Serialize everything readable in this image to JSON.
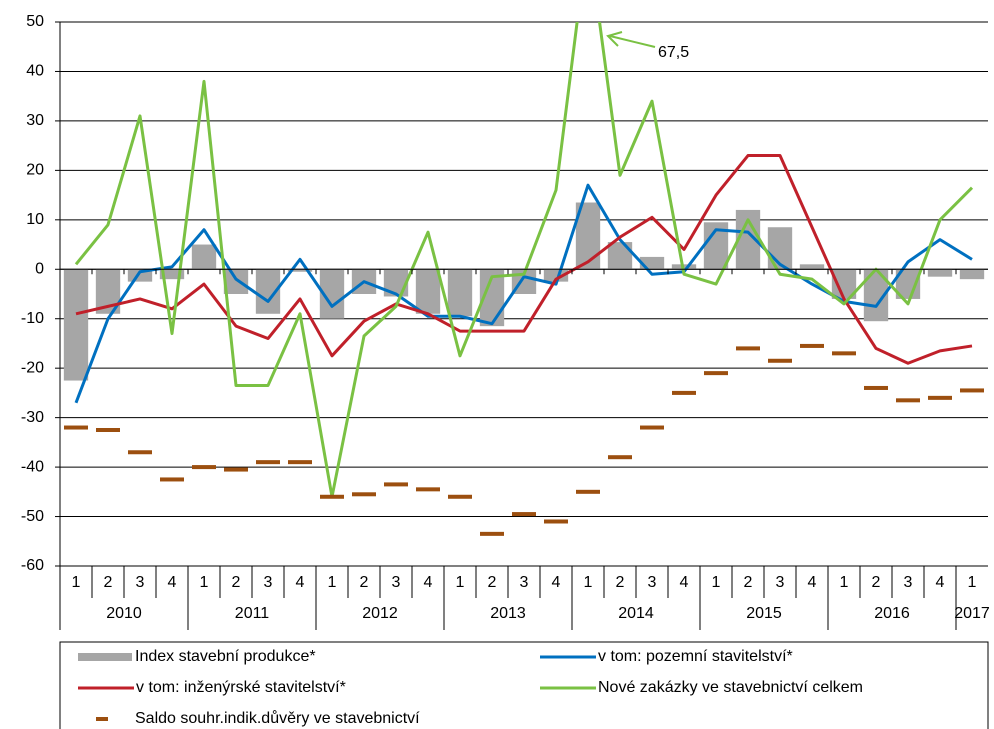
{
  "chart_data": {
    "type": "combo",
    "groups": [
      {
        "label": "2010",
        "categories": [
          "1",
          "2",
          "3",
          "4"
        ]
      },
      {
        "label": "2011",
        "categories": [
          "1",
          "2",
          "3",
          "4"
        ]
      },
      {
        "label": "2012",
        "categories": [
          "1",
          "2",
          "3",
          "4"
        ]
      },
      {
        "label": "2013",
        "categories": [
          "1",
          "2",
          "3",
          "4"
        ]
      },
      {
        "label": "2014",
        "categories": [
          "1",
          "2",
          "3",
          "4"
        ]
      },
      {
        "label": "2015",
        "categories": [
          "1",
          "2",
          "3",
          "4"
        ]
      },
      {
        "label": "2016",
        "categories": [
          "1",
          "2",
          "3",
          "4"
        ]
      },
      {
        "label": "2017",
        "categories": [
          "1"
        ]
      }
    ],
    "series": [
      {
        "name": "Index stavební produkce*",
        "type": "bar",
        "color": "#a6a6a6",
        "values": [
          -22.5,
          -9,
          -2.5,
          -2,
          5,
          -5,
          -9,
          -0.5,
          -10,
          -5,
          -5.5,
          -9,
          -9.5,
          -11.5,
          -5,
          -2.5,
          13.5,
          5.5,
          2.5,
          1,
          9.5,
          12,
          8.5,
          1,
          -6,
          -10.5,
          -6,
          -1.5,
          -2
        ]
      },
      {
        "name": "v tom: pozemní stavitelství*",
        "type": "line",
        "color": "#0070c0",
        "values": [
          -27,
          -10,
          -0.5,
          0.5,
          8,
          -2,
          -6.5,
          2,
          -7.5,
          -2.5,
          -5,
          -9.5,
          -9.5,
          -11,
          -1.5,
          -3,
          17,
          6,
          -1,
          -0.5,
          8,
          7.5,
          1,
          -3,
          -6.5,
          -7.5,
          1.5,
          6,
          2
        ]
      },
      {
        "name": "v tom: inženýrské stavitelství*",
        "type": "line",
        "color": "#c0202a",
        "values": [
          -9,
          -7.5,
          -6,
          -8,
          -3,
          -11.5,
          -14,
          -6,
          -17.5,
          -10.5,
          -7,
          -9,
          -12.5,
          -12.5,
          -12.5,
          -2,
          1.5,
          6.5,
          10.5,
          4,
          15,
          23,
          23,
          8.5,
          -6,
          -16,
          -19,
          -16.5,
          -15.5
        ]
      },
      {
        "name": "Nové zakázky ve stavebnictví celkem",
        "type": "line",
        "color": "#7ac143",
        "values": [
          1,
          9,
          31,
          -13,
          38,
          -23.5,
          -23.5,
          -9,
          -46,
          -13.5,
          -7.5,
          7.5,
          -17.5,
          -1.5,
          -1,
          16,
          67.5,
          19,
          34,
          -1,
          -3,
          10,
          -1,
          -2,
          -7,
          0,
          -7,
          10,
          16.5
        ],
        "value_labels": [
          null,
          null,
          null,
          null,
          null,
          null,
          null,
          null,
          null,
          null,
          null,
          null,
          null,
          null,
          null,
          null,
          "67,5",
          null,
          null,
          null,
          null,
          null,
          null,
          null,
          null,
          null,
          null,
          null,
          null
        ]
      },
      {
        "name": "Saldo souhr.indik.důvěry ve stavebnictví",
        "type": "marker",
        "color": "#9c4f0f",
        "values": [
          -32,
          -32.5,
          -37,
          -42.5,
          -40,
          -40.5,
          -39,
          -39,
          -46,
          -45.5,
          -43.5,
          -44.5,
          -46,
          -53.5,
          -49.5,
          -51,
          -45,
          -38,
          -32,
          -25,
          -21,
          -16,
          -18.5,
          -15.5,
          -17,
          -24,
          -26.5,
          -26,
          -24.5
        ]
      }
    ],
    "ylim": [
      -60,
      50
    ],
    "yticks": [
      -60,
      -50,
      -40,
      -30,
      -20,
      -10,
      0,
      10,
      20,
      30,
      40,
      50
    ],
    "grid": true
  }
}
